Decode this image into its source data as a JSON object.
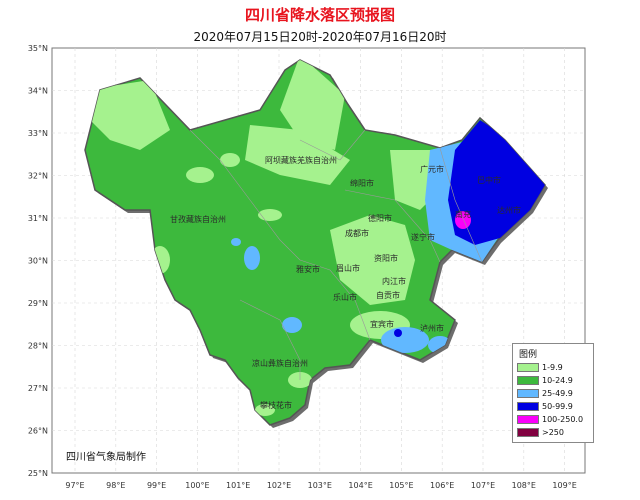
{
  "title": "四川省降水落区预报图",
  "subtitle": "2020年07月15日20时-2020年07月16日20时",
  "credit": "四川省气象局制作",
  "lat_ticks": [
    "35°N",
    "34°N",
    "33°N",
    "32°N",
    "31°N",
    "30°N",
    "29°N",
    "28°N",
    "27°N",
    "26°N",
    "25°N"
  ],
  "lon_ticks": [
    "97°E",
    "98°E",
    "99°E",
    "100°E",
    "101°E",
    "102°E",
    "103°E",
    "104°E",
    "105°E",
    "106°E",
    "107°E",
    "108°E",
    "109°E"
  ],
  "cities": [
    {
      "name": "阿坝藏族羌族自治州"
    },
    {
      "name": "广元市"
    },
    {
      "name": "巴中市"
    },
    {
      "name": "绵阳市"
    },
    {
      "name": "达州市"
    },
    {
      "name": "甘孜藏族自治州"
    },
    {
      "name": "南充"
    },
    {
      "name": "德阳市"
    },
    {
      "name": "成都市"
    },
    {
      "name": "遂宁市"
    },
    {
      "name": "资阳市"
    },
    {
      "name": "雅安市"
    },
    {
      "name": "眉山市"
    },
    {
      "name": "内江市"
    },
    {
      "name": "乐山市"
    },
    {
      "name": "自贡市"
    },
    {
      "name": "宜宾市"
    },
    {
      "name": "泸州市"
    },
    {
      "name": "凉山彝族自治州"
    },
    {
      "name": "攀枝花市"
    }
  ],
  "legend": {
    "title": "图例",
    "items": [
      {
        "label": "1-9.9",
        "color": "#a5f28e"
      },
      {
        "label": "10-24.9",
        "color": "#3db93d"
      },
      {
        "label": "25-49.9",
        "color": "#61b8ff"
      },
      {
        "label": "50-99.9",
        "color": "#0000e1"
      },
      {
        "label": "100-250.0",
        "color": "#fa00fa"
      },
      {
        "label": ">250",
        "color": "#810040"
      }
    ]
  },
  "colors": {
    "background": "#ffffff",
    "map_outside": "#ffffff",
    "province_border": "#555555"
  }
}
